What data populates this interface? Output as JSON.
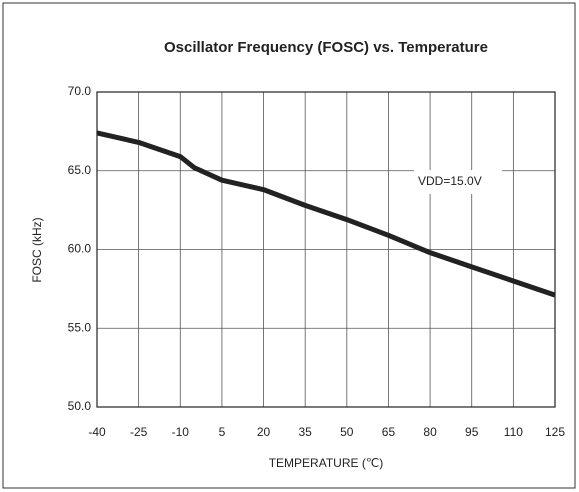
{
  "chart_data": {
    "type": "line",
    "title": "Oscillator Frequency (FOSC) vs. Temperature",
    "x_label": "TEMPERATURE (℃)",
    "y_label": "FOSC (kHz)",
    "annotation": "VDD=15.0V",
    "x": [
      -40,
      -25,
      -10,
      -5,
      5,
      20,
      35,
      50,
      65,
      80,
      95,
      110,
      125
    ],
    "series": [
      {
        "name": "FOSC",
        "color": "#222222",
        "values": [
          67.4,
          66.8,
          65.9,
          65.2,
          64.4,
          63.8,
          62.8,
          61.9,
          60.9,
          59.8,
          58.9,
          58.0,
          57.1
        ]
      }
    ],
    "xlim": [
      -40,
      125
    ],
    "xticks": [
      -40,
      -25,
      -10,
      5,
      20,
      35,
      50,
      65,
      80,
      95,
      110,
      125
    ],
    "ylim": [
      50,
      70
    ],
    "yticks": [
      {
        "value": 50,
        "label": "50.0"
      },
      {
        "value": 55,
        "label": "55.0"
      },
      {
        "value": 60,
        "label": "60.0"
      },
      {
        "value": 65,
        "label": "65.0"
      },
      {
        "value": 70,
        "label": "70.0"
      }
    ],
    "grid": true
  }
}
